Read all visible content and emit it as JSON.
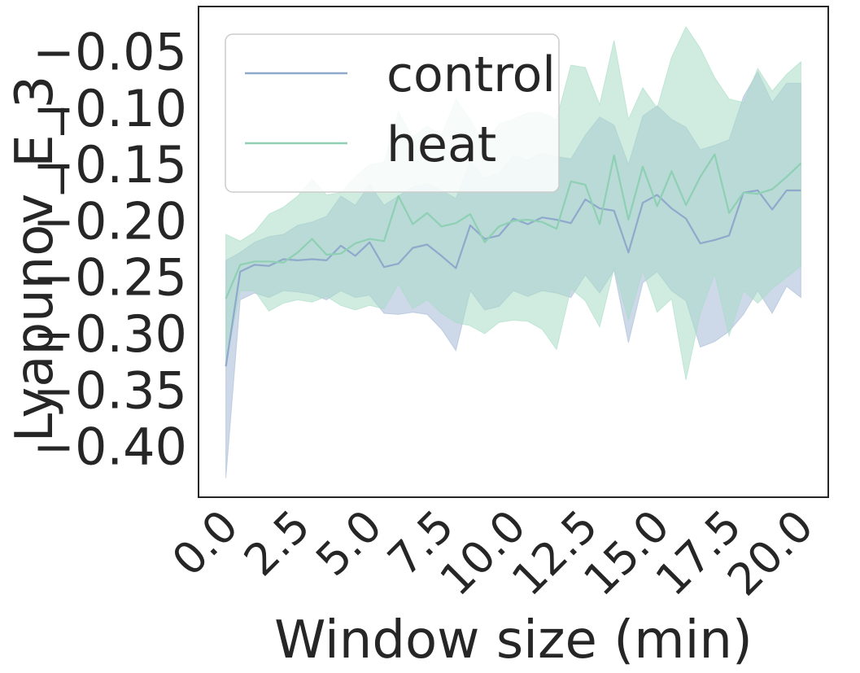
{
  "chart_data": {
    "type": "line",
    "xlabel": "Window size (min)",
    "ylabel": "Lyapunov_E_3",
    "xlim": [
      -0.95,
      20.95
    ],
    "ylim": [
      -0.445,
      -0.01
    ],
    "x_ticks": [
      0.0,
      2.5,
      5.0,
      7.5,
      10.0,
      12.5,
      15.0,
      17.5,
      20.0
    ],
    "x_tick_labels": [
      "0.0",
      "2.5",
      "5.0",
      "7.5",
      "10.0",
      "12.5",
      "15.0",
      "17.5",
      "20.0"
    ],
    "y_ticks": [
      -0.4,
      -0.35,
      -0.3,
      -0.25,
      -0.2,
      -0.15,
      -0.1,
      -0.05
    ],
    "y_tick_labels": [
      "−0.40",
      "−0.35",
      "−0.30",
      "−0.25",
      "−0.20",
      "−0.15",
      "−0.10",
      "−0.05"
    ],
    "grid": false,
    "legend_position": "top-left",
    "x": [
      0.0,
      0.5,
      1.0,
      1.5,
      2.0,
      2.5,
      3.0,
      3.5,
      4.0,
      4.5,
      5.0,
      5.5,
      6.0,
      6.5,
      7.0,
      7.5,
      8.0,
      8.5,
      9.0,
      9.5,
      10.0,
      10.5,
      11.0,
      11.5,
      12.0,
      12.5,
      13.0,
      13.5,
      14.0,
      14.5,
      15.0,
      15.5,
      16.0,
      16.5,
      17.0,
      17.5,
      18.0,
      18.5,
      19.0,
      19.5,
      20.0
    ],
    "series": [
      {
        "name": "control",
        "color": "#8fa9cc",
        "fill": "#a9bcd7",
        "values": [
          -0.329,
          -0.245,
          -0.239,
          -0.24,
          -0.234,
          -0.235,
          -0.234,
          -0.235,
          -0.222,
          -0.231,
          -0.219,
          -0.241,
          -0.238,
          -0.224,
          -0.221,
          -0.231,
          -0.242,
          -0.204,
          -0.216,
          -0.213,
          -0.198,
          -0.203,
          -0.197,
          -0.199,
          -0.202,
          -0.181,
          -0.189,
          -0.191,
          -0.228,
          -0.184,
          -0.177,
          -0.189,
          -0.198,
          -0.22,
          -0.217,
          -0.213,
          -0.175,
          -0.173,
          -0.19,
          -0.173,
          -0.173
        ],
        "upper": [
          -0.235,
          -0.228,
          -0.219,
          -0.214,
          -0.212,
          -0.204,
          -0.201,
          -0.196,
          -0.178,
          -0.186,
          -0.168,
          -0.186,
          -0.178,
          -0.17,
          -0.167,
          -0.173,
          -0.18,
          -0.148,
          -0.162,
          -0.158,
          -0.142,
          -0.146,
          -0.14,
          -0.143,
          -0.145,
          -0.124,
          -0.108,
          -0.115,
          -0.15,
          -0.107,
          -0.098,
          -0.11,
          -0.117,
          -0.137,
          -0.133,
          -0.128,
          -0.09,
          -0.068,
          -0.095,
          -0.078,
          -0.078
        ],
        "lower": [
          -0.428,
          -0.27,
          -0.264,
          -0.268,
          -0.262,
          -0.263,
          -0.265,
          -0.27,
          -0.262,
          -0.268,
          -0.266,
          -0.282,
          -0.283,
          -0.281,
          -0.283,
          -0.296,
          -0.315,
          -0.262,
          -0.279,
          -0.276,
          -0.262,
          -0.267,
          -0.262,
          -0.264,
          -0.268,
          -0.248,
          -0.264,
          -0.244,
          -0.308,
          -0.255,
          -0.245,
          -0.262,
          -0.271,
          -0.312,
          -0.307,
          -0.298,
          -0.283,
          -0.262,
          -0.282,
          -0.258,
          -0.268
        ]
      },
      {
        "name": "heat",
        "color": "#8fd0b4",
        "fill": "#a9dcc7",
        "values": [
          -0.269,
          -0.239,
          -0.236,
          -0.236,
          -0.237,
          -0.228,
          -0.216,
          -0.23,
          -0.229,
          -0.22,
          -0.216,
          -0.218,
          -0.178,
          -0.203,
          -0.193,
          -0.205,
          -0.202,
          -0.194,
          -0.219,
          -0.205,
          -0.2,
          -0.199,
          -0.201,
          -0.207,
          -0.165,
          -0.168,
          -0.203,
          -0.142,
          -0.199,
          -0.152,
          -0.187,
          -0.156,
          -0.186,
          -0.161,
          -0.141,
          -0.193,
          -0.175,
          -0.176,
          -0.172,
          -0.161,
          -0.149
        ],
        "upper": [
          -0.212,
          -0.218,
          -0.21,
          -0.194,
          -0.188,
          -0.178,
          -0.163,
          -0.177,
          -0.175,
          -0.161,
          -0.15,
          -0.148,
          -0.103,
          -0.126,
          -0.116,
          -0.124,
          -0.092,
          -0.11,
          -0.132,
          -0.114,
          -0.11,
          -0.104,
          -0.104,
          -0.11,
          -0.062,
          -0.064,
          -0.097,
          -0.04,
          -0.11,
          -0.082,
          -0.1,
          -0.055,
          -0.028,
          -0.047,
          -0.073,
          -0.092,
          -0.095,
          -0.065,
          -0.085,
          -0.07,
          -0.059
        ],
        "lower": [
          -0.326,
          -0.262,
          -0.262,
          -0.28,
          -0.273,
          -0.27,
          -0.272,
          -0.267,
          -0.275,
          -0.279,
          -0.275,
          -0.278,
          -0.256,
          -0.278,
          -0.27,
          -0.282,
          -0.29,
          -0.293,
          -0.3,
          -0.29,
          -0.288,
          -0.289,
          -0.296,
          -0.314,
          -0.26,
          -0.271,
          -0.294,
          -0.242,
          -0.288,
          -0.244,
          -0.281,
          -0.269,
          -0.341,
          -0.282,
          -0.247,
          -0.302,
          -0.262,
          -0.273,
          -0.26,
          -0.25,
          -0.24
        ]
      }
    ]
  }
}
